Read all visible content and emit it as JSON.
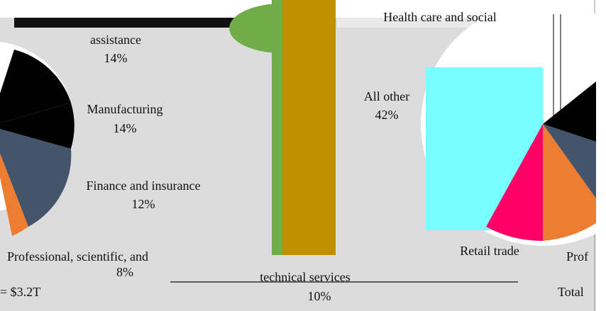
{
  "left_panel": {
    "labels": [
      {
        "name": "assistance",
        "share": "14%"
      },
      {
        "name": "Manufacturing",
        "share": "14%"
      },
      {
        "name": "Finance and insurance",
        "share": "12%"
      },
      {
        "name": "Professional, scientific, and",
        "share": "8%"
      }
    ],
    "total": "= $3.2T"
  },
  "center_panel": {
    "label": {
      "name": "technical services",
      "share": "10%"
    }
  },
  "right_panel": {
    "top_label": "Health care and social",
    "labels": [
      {
        "name": "All other",
        "share": "42%"
      }
    ],
    "retail": "Retail trade",
    "prof": "Prof",
    "total": "Total"
  }
}
